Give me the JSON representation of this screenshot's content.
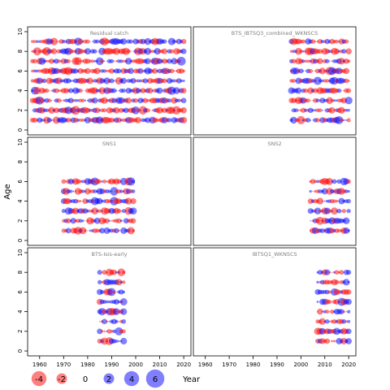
{
  "chart_data": {
    "type": "scatter",
    "subtype": "bubble-residual-grid",
    "xlabel": "Year",
    "ylabel": "Age",
    "xlim": [
      1955,
      2023
    ],
    "x_ticks": [
      1960,
      1970,
      1980,
      1990,
      2000,
      2010,
      2020
    ],
    "colors": {
      "positive": "#0000ff",
      "negative": "#ff0000"
    },
    "legend": {
      "position": "bottom-left",
      "values": [
        -4,
        -2,
        0,
        2,
        4,
        6
      ],
      "labels": [
        "-4",
        "-2",
        "0",
        "2",
        "4",
        "6"
      ]
    },
    "panels": [
      {
        "title": "Residual catch",
        "ylim": [
          0,
          10
        ],
        "y_ticks": [
          0,
          2,
          4,
          6,
          8,
          10
        ],
        "years": [
          1957,
          2020
        ],
        "ages": [
          1,
          9
        ]
      },
      {
        "title": "BTS_IBTSQ3_combined_WKNSCS",
        "ylim": [
          0,
          10
        ],
        "y_ticks": [
          0,
          2,
          4,
          6,
          8,
          10
        ],
        "years": [
          1996,
          2020
        ],
        "ages": [
          1,
          9
        ]
      },
      {
        "title": "SNS1",
        "ylim": [
          0,
          10
        ],
        "y_ticks": [
          0,
          2,
          4,
          6,
          8,
          10
        ],
        "years": [
          1970,
          1999
        ],
        "ages": [
          1,
          6
        ]
      },
      {
        "title": "SNS2",
        "ylim": [
          0,
          10
        ],
        "y_ticks": [
          0,
          2,
          4,
          6,
          8,
          10
        ],
        "years": [
          2004,
          2020
        ],
        "ages": [
          1,
          6
        ]
      },
      {
        "title": "BTS-Isis-early",
        "ylim": [
          0,
          10
        ],
        "y_ticks": [
          0,
          2,
          4,
          6,
          8,
          10
        ],
        "years": [
          1985,
          1995
        ],
        "ages": [
          1,
          8
        ]
      },
      {
        "title": "IBTSQ1_WKNSCS",
        "ylim": [
          0,
          10
        ],
        "y_ticks": [
          0,
          2,
          4,
          6,
          8,
          10
        ],
        "years": [
          2007,
          2020
        ],
        "ages": [
          1,
          8
        ]
      }
    ]
  }
}
